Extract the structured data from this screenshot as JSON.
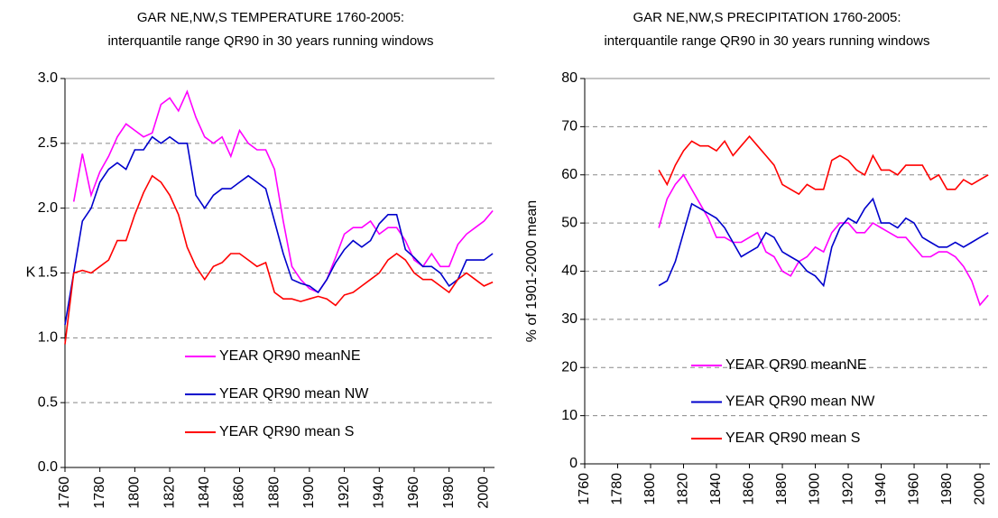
{
  "chart_data": [
    {
      "type": "line",
      "title": "GAR NE,NW,S  TEMPERATURE 1760-2005:",
      "subtitle": "interquantile range QR90  in 30 years running windows",
      "y_label": "K",
      "x": [
        1760,
        1765,
        1770,
        1775,
        1780,
        1785,
        1790,
        1795,
        1800,
        1805,
        1810,
        1815,
        1820,
        1825,
        1830,
        1835,
        1840,
        1845,
        1850,
        1855,
        1860,
        1865,
        1870,
        1875,
        1880,
        1885,
        1890,
        1895,
        1900,
        1905,
        1910,
        1915,
        1920,
        1925,
        1930,
        1935,
        1940,
        1945,
        1950,
        1955,
        1960,
        1965,
        1970,
        1975,
        1980,
        1985,
        1990,
        1995,
        2000,
        2005
      ],
      "xlim": [
        1760,
        2006
      ],
      "xticks": [
        1760,
        1780,
        1800,
        1820,
        1840,
        1860,
        1880,
        1900,
        1920,
        1940,
        1960,
        1980,
        2000
      ],
      "ylim": [
        0,
        3
      ],
      "yticks": [
        {
          "value": 0,
          "label": "0.0"
        },
        0.5,
        {
          "value": 1,
          "label": "1.0"
        },
        1.5,
        {
          "value": 2,
          "label": "2.0"
        },
        2.5,
        {
          "value": 3,
          "label": "3.0"
        }
      ],
      "grid": true,
      "legend": "lower center",
      "series": [
        {
          "name": "YEAR QR90 meanNE",
          "color": "#ff00ff",
          "values": [
            null,
            2.05,
            2.42,
            2.1,
            2.28,
            2.4,
            2.55,
            2.65,
            2.6,
            2.55,
            2.58,
            2.8,
            2.85,
            2.75,
            2.9,
            2.7,
            2.55,
            2.5,
            2.55,
            2.4,
            2.6,
            2.5,
            2.45,
            2.45,
            2.3,
            1.9,
            1.55,
            1.45,
            1.38,
            1.35,
            1.45,
            1.62,
            1.8,
            1.85,
            1.85,
            1.9,
            1.8,
            1.85,
            1.85,
            1.75,
            1.6,
            1.55,
            1.65,
            1.55,
            1.55,
            1.72,
            1.8,
            1.85,
            1.9,
            1.98
          ]
        },
        {
          "name": "YEAR QR90 mean NW",
          "color": "#0000cc",
          "values": [
            1.1,
            1.5,
            1.9,
            2.0,
            2.2,
            2.3,
            2.35,
            2.3,
            2.45,
            2.45,
            2.55,
            2.5,
            2.55,
            2.5,
            2.5,
            2.1,
            2.0,
            2.1,
            2.15,
            2.15,
            2.2,
            2.25,
            2.2,
            2.15,
            1.9,
            1.65,
            1.45,
            1.42,
            1.4,
            1.35,
            1.45,
            1.58,
            1.68,
            1.75,
            1.7,
            1.75,
            1.88,
            1.95,
            1.95,
            1.68,
            1.62,
            1.55,
            1.55,
            1.5,
            1.4,
            1.45,
            1.6,
            1.6,
            1.6,
            1.65
          ]
        },
        {
          "name": "YEAR QR90 mean S",
          "color": "#ff0000",
          "values": [
            0.95,
            1.5,
            1.52,
            1.5,
            1.55,
            1.6,
            1.75,
            1.75,
            1.95,
            2.12,
            2.25,
            2.2,
            2.1,
            1.95,
            1.7,
            1.55,
            1.45,
            1.55,
            1.58,
            1.65,
            1.65,
            1.6,
            1.55,
            1.58,
            1.35,
            1.3,
            1.3,
            1.28,
            1.3,
            1.32,
            1.3,
            1.25,
            1.33,
            1.35,
            1.4,
            1.45,
            1.5,
            1.6,
            1.65,
            1.6,
            1.5,
            1.45,
            1.45,
            1.4,
            1.35,
            1.45,
            1.5,
            1.45,
            1.4,
            1.43
          ]
        }
      ]
    },
    {
      "type": "line",
      "title": "GAR NE,NW,S  PRECIPITATION 1760-2005:",
      "subtitle": "interquantile range QR90  in 30 years running windows",
      "y_label": "% of 1901-2000 mean",
      "x": [
        1805,
        1810,
        1815,
        1820,
        1825,
        1830,
        1835,
        1840,
        1845,
        1850,
        1855,
        1860,
        1865,
        1870,
        1875,
        1880,
        1885,
        1890,
        1895,
        1900,
        1905,
        1910,
        1915,
        1920,
        1925,
        1930,
        1935,
        1940,
        1945,
        1950,
        1955,
        1960,
        1965,
        1970,
        1975,
        1980,
        1985,
        1990,
        1995,
        2000,
        2005
      ],
      "xlim": [
        1760,
        2006
      ],
      "xticks": [
        1760,
        1780,
        1800,
        1820,
        1840,
        1860,
        1880,
        1900,
        1920,
        1940,
        1960,
        1980,
        2000
      ],
      "ylim": [
        0,
        80
      ],
      "yticks": [
        0,
        10,
        20,
        30,
        40,
        50,
        60,
        70,
        80
      ],
      "grid": true,
      "legend": "lower center",
      "series": [
        {
          "name": "YEAR QR90 meanNE",
          "color": "#ff00ff",
          "values": [
            49,
            55,
            58,
            60,
            57,
            54,
            51,
            47,
            47,
            46,
            46,
            47,
            48,
            44,
            43,
            40,
            39,
            42,
            43,
            45,
            44,
            48,
            50,
            50,
            48,
            48,
            50,
            49,
            48,
            47,
            47,
            45,
            43,
            43,
            44,
            44,
            43,
            41,
            38,
            33,
            35
          ]
        },
        {
          "name": "YEAR QR90 mean NW",
          "color": "#0000cc",
          "values": [
            37,
            38,
            42,
            48,
            54,
            53,
            52,
            51,
            49,
            46,
            43,
            44,
            45,
            48,
            47,
            44,
            43,
            42,
            40,
            39,
            37,
            45,
            49,
            51,
            50,
            53,
            55,
            50,
            50,
            49,
            51,
            50,
            47,
            46,
            45,
            45,
            46,
            45,
            46,
            47,
            48
          ]
        },
        {
          "name": "YEAR QR90 mean S",
          "color": "#ff0000",
          "values": [
            61,
            58,
            62,
            65,
            67,
            66,
            66,
            65,
            67,
            64,
            66,
            68,
            66,
            64,
            62,
            58,
            57,
            56,
            58,
            57,
            57,
            63,
            64,
            63,
            61,
            60,
            64,
            61,
            61,
            60,
            62,
            62,
            62,
            59,
            60,
            57,
            57,
            59,
            58,
            59,
            60
          ]
        }
      ]
    }
  ]
}
